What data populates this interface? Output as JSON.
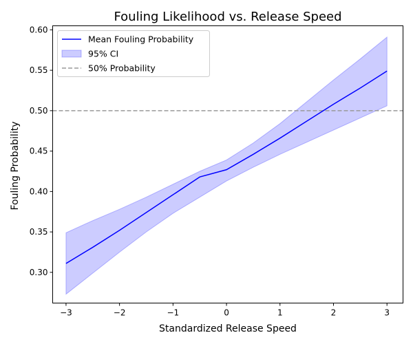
{
  "chart_data": {
    "type": "line",
    "title": "Fouling Likelihood vs. Release Speed",
    "xlabel": "Standardized Release Speed",
    "ylabel": "Fouling Probability",
    "xlim": [
      -3.25,
      3.3
    ],
    "ylim": [
      0.262,
      0.605
    ],
    "x_ticks": [
      -3,
      -2,
      -1,
      0,
      1,
      2,
      3
    ],
    "x_tick_labels": [
      "−3",
      "−2",
      "−1",
      "0",
      "1",
      "2",
      "3"
    ],
    "y_ticks": [
      0.3,
      0.35,
      0.4,
      0.45,
      0.5,
      0.55,
      0.6
    ],
    "y_tick_labels": [
      "0.30",
      "0.35",
      "0.40",
      "0.45",
      "0.50",
      "0.55",
      "0.60"
    ],
    "grid": false,
    "legend_position": "top-left",
    "series": [
      {
        "name": "Mean Fouling Probability",
        "kind": "line",
        "color": "#0000ff",
        "x": [
          -3,
          -2.5,
          -2,
          -1.5,
          -1,
          -0.5,
          0,
          0.5,
          1,
          1.5,
          2,
          2.5,
          3
        ],
        "y": [
          0.311,
          0.331,
          0.352,
          0.374,
          0.396,
          0.418,
          0.427,
          0.446,
          0.466,
          0.487,
          0.508,
          0.528,
          0.549
        ]
      },
      {
        "name": "95% CI",
        "kind": "band",
        "color": "#0000ff",
        "x": [
          -3,
          -2.5,
          -2,
          -1.5,
          -1,
          -0.5,
          0,
          0.5,
          1,
          1.5,
          2,
          2.5,
          3
        ],
        "lower": [
          0.273,
          0.299,
          0.325,
          0.35,
          0.373,
          0.393,
          0.413,
          0.43,
          0.446,
          0.461,
          0.476,
          0.491,
          0.506
        ],
        "upper": [
          0.349,
          0.364,
          0.378,
          0.393,
          0.409,
          0.425,
          0.439,
          0.46,
          0.484,
          0.511,
          0.538,
          0.564,
          0.591
        ]
      },
      {
        "name": "50% Probability",
        "kind": "hline",
        "color": "#999999",
        "y": 0.5
      }
    ]
  }
}
